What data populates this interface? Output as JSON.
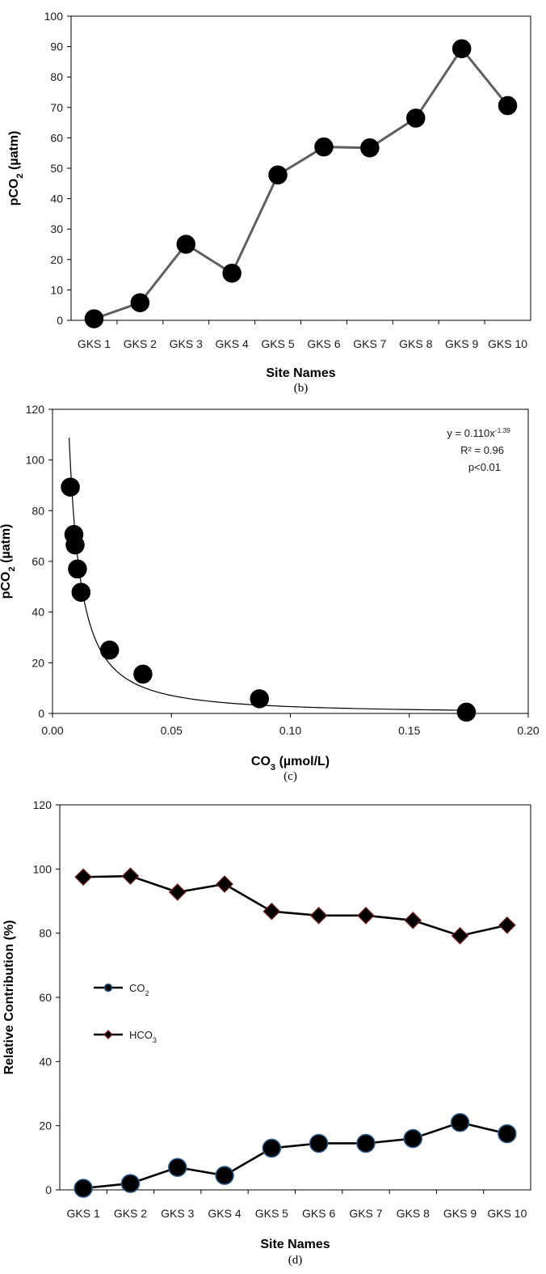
{
  "chart_data": [
    {
      "type": "line",
      "categories": [
        "GKS 1",
        "GKS 2",
        "GKS 3",
        "GKS 4",
        "GKS 5",
        "GKS 6",
        "GKS 7",
        "GKS 8",
        "GKS 9",
        "GKS 10"
      ],
      "series": [
        {
          "values": [
            0.5,
            5.8,
            25.0,
            15.5,
            47.8,
            57.0,
            56.7,
            66.5,
            89.3,
            70.6
          ],
          "color": "#5f5f5f",
          "marker": "circle"
        }
      ],
      "ylim": [
        0,
        100
      ],
      "yticks": [
        "0",
        "10",
        "20",
        "30",
        "40",
        "50",
        "60",
        "70",
        "80",
        "90",
        "100"
      ],
      "ylabel": "pCO",
      "ylabel_sub": "2",
      "ylabel_tail": " (µatm)",
      "xlabel": "Site Names",
      "caption": "(b)",
      "grid": false
    },
    {
      "type": "scatter",
      "x": [
        0.0075,
        0.009,
        0.0095,
        0.0105,
        0.012,
        0.024,
        0.038,
        0.087,
        0.174
      ],
      "y": [
        89.3,
        70.6,
        66.5,
        57.0,
        47.8,
        25.0,
        15.5,
        5.8,
        0.5
      ],
      "trendline": {
        "a": 0.11,
        "b": -1.39,
        "x_from": 0.007,
        "x_to": 0.175
      },
      "annotation": {
        "eq_prefix": "y = 0.110x",
        "eq_exp": "-1.39",
        "r2": "R² = 0.96",
        "p": "p<0.01"
      },
      "xlim": [
        0,
        0.2
      ],
      "ylim": [
        0,
        120
      ],
      "xticks": [
        "0.00",
        "0.05",
        "0.10",
        "0.15",
        "0.20"
      ],
      "yticks": [
        "0",
        "20",
        "40",
        "60",
        "80",
        "100",
        "120"
      ],
      "ylabel": "pCO",
      "ylabel_sub": "2",
      "ylabel_tail": " (µatm)",
      "xlabel": "CO",
      "xlabel_sub": "3",
      "xlabel_tail": " (µmol/L)",
      "caption": "(c)",
      "grid": false
    },
    {
      "type": "line",
      "categories": [
        "GKS 1",
        "GKS 2",
        "GKS 3",
        "GKS 4",
        "GKS 5",
        "GKS 6",
        "GKS 7",
        "GKS 8",
        "GKS 9",
        "GKS 10"
      ],
      "series": [
        {
          "name": "CO",
          "name_sub": "2",
          "values": [
            0.5,
            2.0,
            7.0,
            4.5,
            13.0,
            14.5,
            14.5,
            16.0,
            21.0,
            17.5
          ],
          "color": "#000000",
          "edge": "#2f5f8f",
          "marker": "circle"
        },
        {
          "name": "HCO",
          "name_sub": "3",
          "values": [
            97.5,
            97.8,
            92.8,
            95.3,
            86.8,
            85.5,
            85.5,
            84.0,
            79.2,
            82.5
          ],
          "color": "#000000",
          "edge": "#7a1f1f",
          "marker": "diamond"
        }
      ],
      "ylim": [
        0,
        120
      ],
      "yticks": [
        "0",
        "20",
        "40",
        "60",
        "80",
        "100",
        "120"
      ],
      "ylabel": "Relative Contribution (%)",
      "xlabel": "Site Names",
      "caption": "(d)",
      "legend": "left",
      "grid": false
    }
  ]
}
